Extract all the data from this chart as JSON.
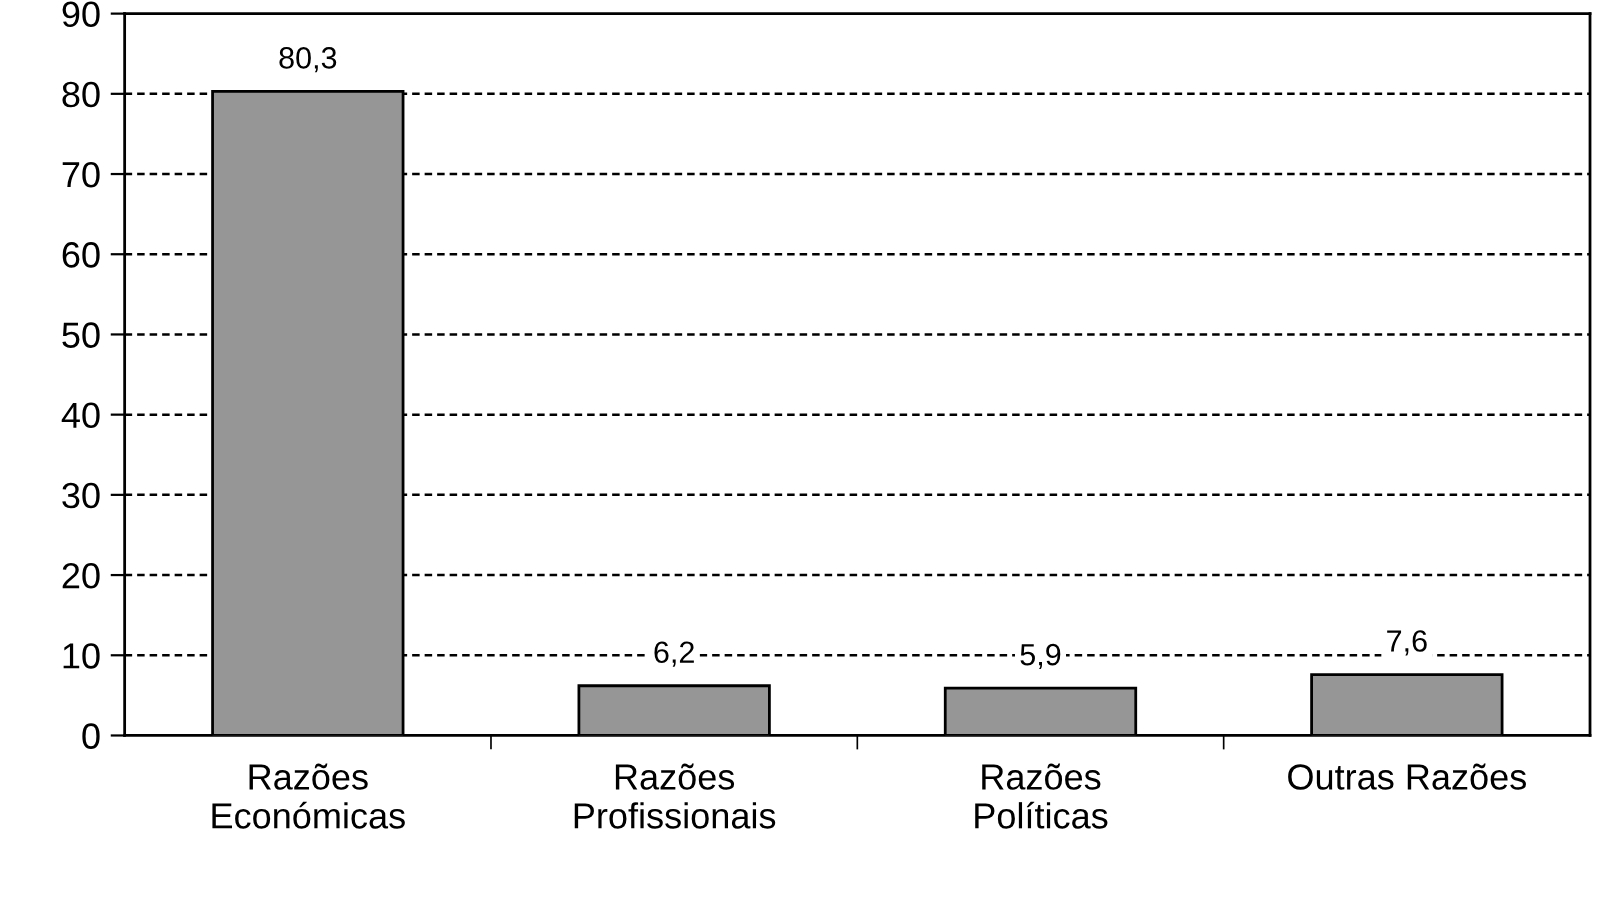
{
  "chart_data": {
    "type": "bar",
    "categories": [
      "Razões\nEconómicas",
      "Razões\nProfissionais",
      "Razões\nPolíticas",
      "Outras Razões"
    ],
    "values": [
      80.3,
      6.2,
      5.9,
      7.6
    ],
    "value_labels": [
      "80,3",
      "6,2",
      "5,9",
      "7,6"
    ],
    "color": "#969696",
    "ylim": [
      0,
      90
    ],
    "yticks": [
      0,
      10,
      20,
      30,
      40,
      50,
      60,
      70,
      80,
      90
    ],
    "grid": "y",
    "legend": false
  }
}
